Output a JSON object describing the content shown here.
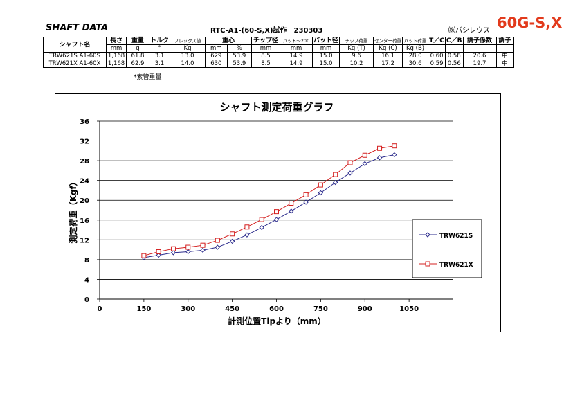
{
  "header": {
    "shaft_title": "SHAFT DATA",
    "doc_title": "RTC-A1-(60-S,X)試作　230303",
    "company": "㈱バシレウス",
    "model": "60G-S,X"
  },
  "table": {
    "headers": [
      "シャフト名",
      "長さ",
      "重量",
      "トルク",
      "フレックス値",
      "重心",
      "",
      "チップ径",
      "バット～200",
      "バット径",
      "チップ荷重",
      "センター荷重",
      "バット荷重",
      "T／C",
      "C／B",
      "調子係数",
      "調子"
    ],
    "units": [
      "",
      "mm",
      "g",
      "°",
      "Kg",
      "mm",
      "%",
      "mm",
      "mm",
      "mm",
      "Kg (T)",
      "Kg (C)",
      "Kg (B)",
      "",
      "",
      "",
      ""
    ],
    "rows": [
      [
        "TRW621S A1-60S",
        "1,168",
        "61.8",
        "3.1",
        "13.0",
        "629",
        "53.9",
        "8.5",
        "14.9",
        "15.0",
        "9.6",
        "16.1",
        "28.0",
        "0.60",
        "0.58",
        "20.6",
        "中"
      ],
      [
        "TRW621X A1-60X",
        "1,168",
        "62.9",
        "3.1",
        "14.0",
        "630",
        "53.9",
        "8.5",
        "14.9",
        "15.0",
        "10.2",
        "17.2",
        "30.6",
        "0.59",
        "0.56",
        "19.7",
        "中"
      ]
    ],
    "footnote": "*素管重量"
  },
  "chart_data": {
    "type": "line",
    "title": "シャフト測定荷重グラフ",
    "xlabel": "計測位置Tipより（mm）",
    "ylabel": "測定荷重（Kgf）",
    "xlim": [
      0,
      1200
    ],
    "ylim": [
      0,
      36
    ],
    "xticks": [
      0,
      150,
      300,
      450,
      600,
      750,
      900,
      1050
    ],
    "yticks": [
      0,
      4,
      8,
      12,
      16,
      20,
      24,
      28,
      32,
      36
    ],
    "grid": "horizontal",
    "legend": "right",
    "x": [
      150,
      200,
      250,
      300,
      350,
      400,
      450,
      500,
      550,
      600,
      650,
      700,
      750,
      800,
      850,
      900,
      950,
      1000
    ],
    "series": [
      {
        "name": "TRW621S",
        "color": "#2b2b8c",
        "marker": "diamond",
        "values": [
          8.4,
          8.9,
          9.4,
          9.6,
          9.9,
          10.5,
          11.7,
          13.0,
          14.5,
          16.1,
          17.8,
          19.6,
          21.5,
          23.6,
          25.5,
          27.4,
          28.6,
          29.2
        ]
      },
      {
        "name": "TRW621X",
        "color": "#d42020",
        "marker": "square",
        "values": [
          8.8,
          9.6,
          10.2,
          10.5,
          10.9,
          11.9,
          13.2,
          14.6,
          16.1,
          17.7,
          19.4,
          21.1,
          23.1,
          25.2,
          27.6,
          29.1,
          30.5,
          31.0
        ]
      }
    ]
  }
}
